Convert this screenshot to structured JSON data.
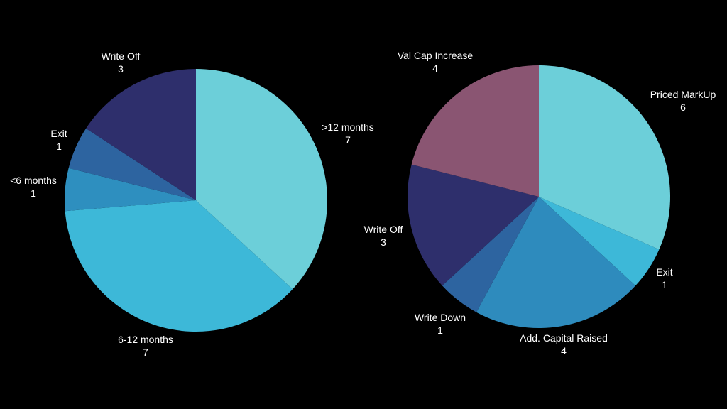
{
  "chart_data": [
    {
      "type": "pie",
      "categories": [
        ">12 months",
        "6-12 months",
        "<6 months",
        "Exit",
        "Write Off"
      ],
      "values": [
        7,
        7,
        1,
        1,
        3
      ],
      "value_labels": [
        "7",
        "7",
        "1",
        "1",
        "3"
      ],
      "colors": [
        "#6ccfd9",
        "#3db8d8",
        "#2e8fbf",
        "#2d64a0",
        "#2e2f6c"
      ],
      "title": "",
      "legend": "none"
    },
    {
      "type": "pie",
      "categories": [
        "Priced MarkUp",
        "Exit",
        "Add. Capital Raised",
        "Write Down",
        "Write Off",
        "Val Cap Increase"
      ],
      "values": [
        6,
        1,
        4,
        1,
        3,
        4
      ],
      "value_labels": [
        "6",
        "1",
        "4",
        "1",
        "3",
        "4"
      ],
      "colors": [
        "#6ccfd9",
        "#3db8d8",
        "#2e8bbd",
        "#2d64a0",
        "#2e2f6c",
        "#8a5572"
      ],
      "title": "",
      "legend": "none"
    }
  ]
}
